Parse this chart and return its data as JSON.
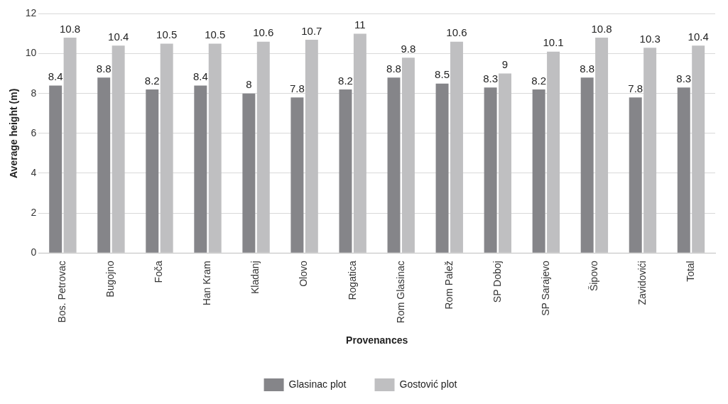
{
  "chart_data": {
    "type": "bar",
    "xlabel": "Provenances",
    "ylabel": "Average height (m)",
    "categories": [
      "Bos. Petrovac",
      "Bugojno",
      "Foča",
      "Han Kram",
      "Kladanj",
      "Olovo",
      "Rogatica",
      "Rom Glasinac",
      "Rom Palež",
      "SP Doboj",
      "SP Sarajevo",
      "Šipovo",
      "Zavidovići",
      "Total"
    ],
    "series": [
      {
        "name": "Glasinac plot",
        "color": "#858589",
        "values": [
          8.4,
          8.8,
          8.2,
          8.4,
          8,
          7.8,
          8.2,
          8.8,
          8.5,
          8.3,
          8.2,
          8.8,
          7.8,
          8.3
        ]
      },
      {
        "name": "Gostović plot",
        "color": "#bfbfc1",
        "values": [
          10.8,
          10.4,
          10.5,
          10.5,
          10.6,
          10.7,
          11,
          9.8,
          10.6,
          9,
          10.1,
          10.8,
          10.3,
          10.4
        ]
      }
    ],
    "ylim": [
      0,
      12
    ],
    "yticks": [
      0,
      2,
      4,
      6,
      8,
      10,
      12
    ],
    "grid": "y",
    "legend": "bottom",
    "data_labels": true
  }
}
